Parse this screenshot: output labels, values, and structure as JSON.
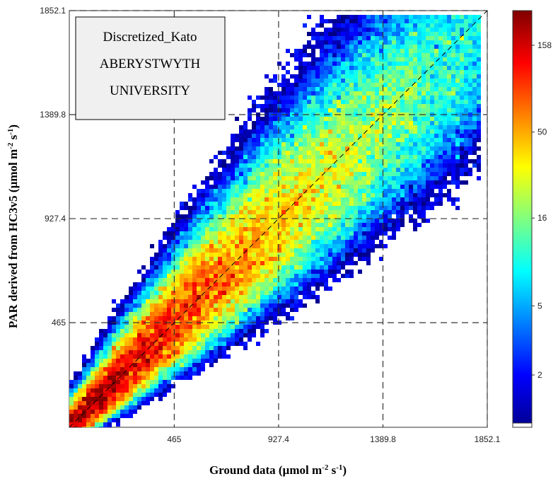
{
  "chart_data": {
    "type": "heatmap",
    "subtype": "density-scatter",
    "xlabel": {
      "main": "Ground data (µmol m",
      "sup1": "-2",
      "mid": " s",
      "sup2": "-1",
      "end": ")"
    },
    "ylabel": {
      "main": "PAR derived from HC3v5 (µmol m",
      "sup1": "-2",
      "mid": " s",
      "sup2": "-1",
      "end": ")"
    },
    "xlim": [
      0,
      1852.1
    ],
    "ylim": [
      0,
      1852.1
    ],
    "xticks": [
      "465",
      "927.4",
      "1389.8",
      "1852.1"
    ],
    "yticks": [
      "465",
      "927.4",
      "1389.8",
      "1852.1"
    ],
    "tick_values": [
      465,
      927.4,
      1389.8,
      1852.1
    ],
    "grid": "dashed",
    "one_to_one_line": true,
    "legend_box": {
      "line1": "Discretized_Kato",
      "line2": "ABERYSTWYTH",
      "line3": "UNIVERSITY"
    },
    "colorbar": {
      "scale": "log",
      "range": [
        1,
        250
      ],
      "ticks": [
        2,
        5,
        16,
        50,
        158
      ],
      "tick_labels": [
        "2",
        "5",
        "16",
        "50",
        "158"
      ],
      "colormap": "jet"
    },
    "distribution": {
      "x_max": 1852.1,
      "peak_count_near_origin": 250,
      "spread_relative": 0.15
    }
  }
}
